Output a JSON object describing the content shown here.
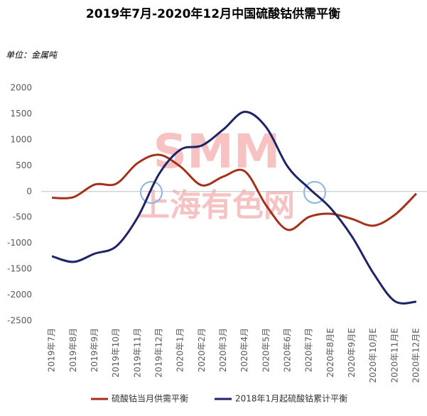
{
  "chart_data": {
    "type": "line",
    "title": "2019年7月-2020年12月中国硫酸钴供需平衡",
    "unit_label": "单位：金属吨",
    "watermark": [
      "SMM",
      "上海有色网"
    ],
    "categories": [
      "2019年7月",
      "2019年8月",
      "2019年9月",
      "2019年10月",
      "2019年11月",
      "2019年12月",
      "2020年1月",
      "2020年2月",
      "2020年3月",
      "2020年4月",
      "2020年5月",
      "2020年6月",
      "2020年7月",
      "2020年8月E",
      "2020年9月E",
      "2020年10月E",
      "2020年11月E",
      "2020年12月E"
    ],
    "series": [
      {
        "name": "硫酸钴当月供需平衡",
        "color": "#a5311b",
        "values": [
          -120,
          -110,
          135,
          150,
          550,
          710,
          480,
          120,
          290,
          390,
          -270,
          -740,
          -490,
          -430,
          -530,
          -660,
          -450,
          -40
        ]
      },
      {
        "name": "2018年1月起硫酸钴累计平衡",
        "color": "#1f2367",
        "values": [
          -1250,
          -1360,
          -1200,
          -1060,
          -500,
          340,
          810,
          890,
          1200,
          1540,
          1240,
          480,
          60,
          -320,
          -870,
          -1580,
          -2120,
          -2130
        ]
      }
    ],
    "ylim": [
      -2500,
      2000
    ],
    "yticks": [
      -2500,
      -2000,
      -1500,
      -1000,
      -500,
      0,
      500,
      1000,
      1500,
      2000
    ],
    "grid": false,
    "legend": "bottom"
  }
}
